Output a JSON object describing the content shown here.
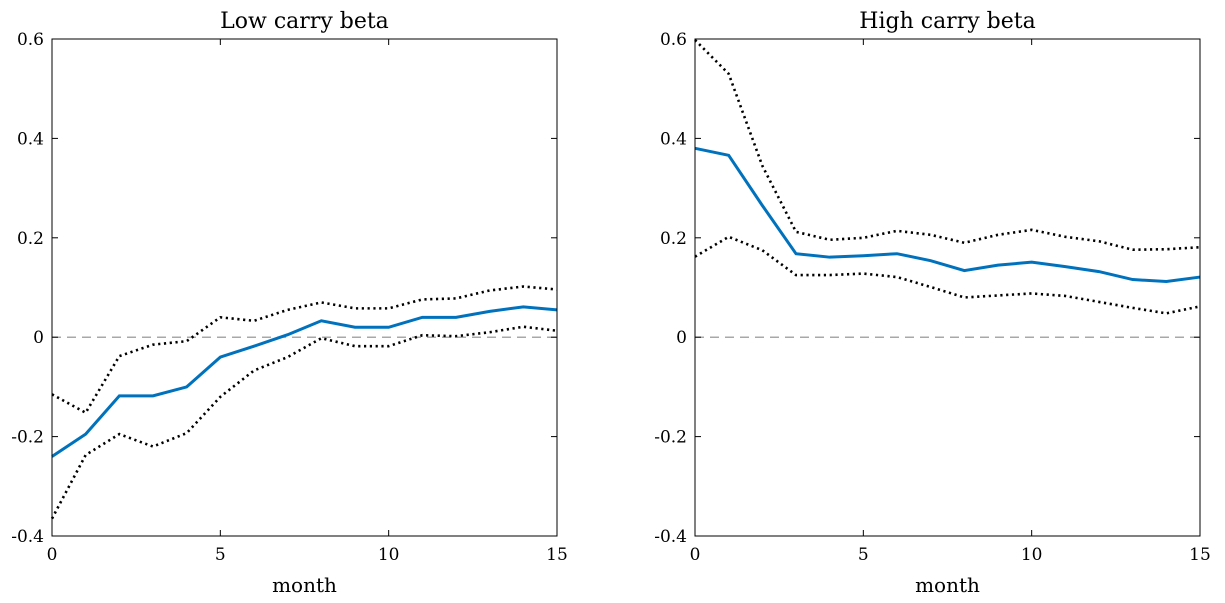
{
  "chart_data": [
    {
      "type": "line",
      "title": "Low carry beta",
      "xlabel": "month",
      "ylabel": "",
      "xlim": [
        0,
        15
      ],
      "ylim": [
        -0.4,
        0.6
      ],
      "xticks": [
        0,
        5,
        10,
        15
      ],
      "yticks": [
        -0.4,
        -0.2,
        0,
        0.2,
        0.4,
        0.6
      ],
      "xtick_labels": [
        "0",
        "5",
        "10",
        "15"
      ],
      "ytick_labels": [
        "-0.4",
        "-0.2",
        "0",
        "0.2",
        "0.4",
        "0.6"
      ],
      "zero_line": 0,
      "x": [
        0,
        1,
        2,
        3,
        4,
        5,
        6,
        7,
        8,
        9,
        10,
        11,
        12,
        13,
        14,
        15
      ],
      "series": [
        {
          "role": "estimate",
          "color": "#0072BD",
          "style": "solid",
          "values": [
            -0.24,
            -0.195,
            -0.118,
            -0.118,
            -0.1,
            -0.04,
            -0.018,
            0.005,
            0.033,
            0.02,
            0.02,
            0.04,
            0.04,
            0.052,
            0.061,
            0.055
          ]
        },
        {
          "role": "upper-bound",
          "color": "#000000",
          "style": "dotted",
          "values": [
            -0.115,
            -0.152,
            -0.038,
            -0.015,
            -0.008,
            0.04,
            0.033,
            0.055,
            0.07,
            0.058,
            0.058,
            0.076,
            0.078,
            0.094,
            0.102,
            0.096
          ]
        },
        {
          "role": "lower-bound",
          "color": "#000000",
          "style": "dotted",
          "values": [
            -0.365,
            -0.237,
            -0.195,
            -0.22,
            -0.193,
            -0.12,
            -0.067,
            -0.04,
            -0.002,
            -0.018,
            -0.018,
            0.004,
            0.002,
            0.01,
            0.021,
            0.013
          ]
        }
      ]
    },
    {
      "type": "line",
      "title": "High carry beta",
      "xlabel": "month",
      "ylabel": "",
      "xlim": [
        0,
        15
      ],
      "ylim": [
        -0.4,
        0.6
      ],
      "xticks": [
        0,
        5,
        10,
        15
      ],
      "yticks": [
        -0.4,
        -0.2,
        0,
        0.2,
        0.4,
        0.6
      ],
      "xtick_labels": [
        "0",
        "5",
        "10",
        "15"
      ],
      "ytick_labels": [
        "-0.4",
        "-0.2",
        "0",
        "0.2",
        "0.4",
        "0.6"
      ],
      "zero_line": 0,
      "x": [
        0,
        1,
        2,
        3,
        4,
        5,
        6,
        7,
        8,
        9,
        10,
        11,
        12,
        13,
        14,
        15
      ],
      "series": [
        {
          "role": "estimate",
          "color": "#0072BD",
          "style": "solid",
          "values": [
            0.38,
            0.366,
            0.265,
            0.168,
            0.161,
            0.164,
            0.168,
            0.154,
            0.134,
            0.145,
            0.151,
            0.142,
            0.132,
            0.116,
            0.112,
            0.121
          ]
        },
        {
          "role": "upper-bound",
          "color": "#000000",
          "style": "dotted",
          "values": [
            0.598,
            0.53,
            0.345,
            0.212,
            0.196,
            0.2,
            0.214,
            0.206,
            0.19,
            0.206,
            0.216,
            0.202,
            0.193,
            0.176,
            0.177,
            0.181
          ]
        },
        {
          "role": "lower-bound",
          "color": "#000000",
          "style": "dotted",
          "values": [
            0.162,
            0.202,
            0.175,
            0.125,
            0.125,
            0.128,
            0.121,
            0.101,
            0.08,
            0.084,
            0.088,
            0.083,
            0.071,
            0.059,
            0.048,
            0.062
          ]
        }
      ]
    }
  ]
}
